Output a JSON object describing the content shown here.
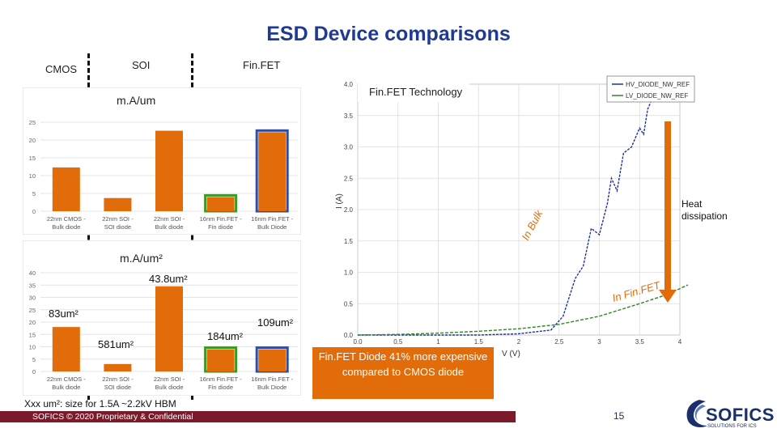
{
  "slide": {
    "title": "ESD Device comparisons",
    "sections": {
      "cmos": "CMOS",
      "soi": "SOI",
      "finfet": "Fin.FET"
    },
    "page_number": "15",
    "footer": "SOFICS © 2020 Proprietary & Confidential",
    "footnote": "Xxx um²: size for 1.5A ~2.2kV HBM",
    "logo": {
      "name": "SOFICS",
      "tagline": "SOLUTIONS FOR ICS"
    },
    "colors": {
      "accent": "#e36c0a",
      "title": "#1f3a93",
      "green": "#3a9a2a",
      "blue": "#2f4fa0",
      "footer": "#7b1a2a"
    }
  },
  "chart_data": [
    {
      "type": "bar",
      "title": "m.A/um",
      "categories": [
        "22nm CMOS - Bulk diode",
        "22nm SOI - SOI diode",
        "22nm SOI - Bulk diode",
        "16nm Fin.FET - Fin diode",
        "16nm Fin.FET - Bulk Diode"
      ],
      "values": [
        12.3,
        3.7,
        22.6,
        4.0,
        22.2
      ],
      "ylim": [
        0,
        25
      ],
      "yticks": [
        "0",
        "5",
        "10",
        "15",
        "20",
        "25"
      ],
      "highlights": [
        "",
        "",
        "",
        "green",
        "blue"
      ]
    },
    {
      "type": "bar",
      "title": "m.A/um²",
      "categories": [
        "22nm CMOS - Bulk diode",
        "22nm SOI - SOI diode",
        "22nm SOI - Bulk diode",
        "16nm Fin.FET - Fin diode",
        "16nm Fin.FET - Bulk Diode"
      ],
      "values": [
        18.0,
        3.0,
        34.5,
        9.0,
        9.0
      ],
      "ylim": [
        0,
        40
      ],
      "yticks": [
        "0",
        "5",
        "10",
        "15",
        "20",
        "25",
        "30",
        "35",
        "40"
      ],
      "highlights": [
        "",
        "",
        "",
        "green",
        "blue"
      ],
      "annotations": [
        "83um²",
        "581um²",
        "43.8um²",
        "184um²",
        "109um²"
      ]
    },
    {
      "type": "line",
      "title": "Fin.FET Technology",
      "xlabel": "V (V)",
      "ylabel": "I (A)",
      "xlim": [
        0,
        4
      ],
      "ylim": [
        0,
        4
      ],
      "xticks": [
        "0.0",
        "0.5",
        "1",
        "1.5",
        "2",
        "2.5",
        "3",
        "3.5",
        "4"
      ],
      "yticks": [
        "0.0",
        "0.5",
        "1.0",
        "1.5",
        "2.0",
        "2.5",
        "3.0",
        "3.5",
        "4.0"
      ],
      "series": [
        {
          "name": "HV_DIODE_NW_REF",
          "color": "#2030a0",
          "x": [
            0.0,
            0.5,
            1.0,
            1.5,
            2.0,
            2.4,
            2.55,
            2.7,
            2.8,
            2.9,
            3.0,
            3.1,
            3.15,
            3.22,
            3.3,
            3.4,
            3.5,
            3.55,
            3.6,
            3.65,
            3.68
          ],
          "y": [
            0.0,
            0.0,
            0.0,
            0.0,
            0.02,
            0.08,
            0.3,
            0.9,
            1.1,
            1.7,
            1.6,
            2.1,
            2.5,
            2.3,
            2.9,
            3.0,
            3.3,
            3.2,
            3.6,
            3.75,
            3.9
          ]
        },
        {
          "name": "LV_DIODE_NW_REF",
          "color": "#2a8a20",
          "x": [
            0.0,
            0.5,
            1.0,
            1.5,
            2.0,
            2.5,
            3.0,
            3.5,
            3.85,
            4.1
          ],
          "y": [
            0.0,
            0.01,
            0.03,
            0.06,
            0.1,
            0.17,
            0.3,
            0.5,
            0.65,
            0.8
          ]
        }
      ],
      "annotations": {
        "in_bulk": "In Bulk",
        "in_finfet": "In Fin.FET",
        "heat": "Heat dissipation"
      }
    }
  ],
  "callout": "Fin.FET Diode 41% more expensive compared to CMOS diode"
}
